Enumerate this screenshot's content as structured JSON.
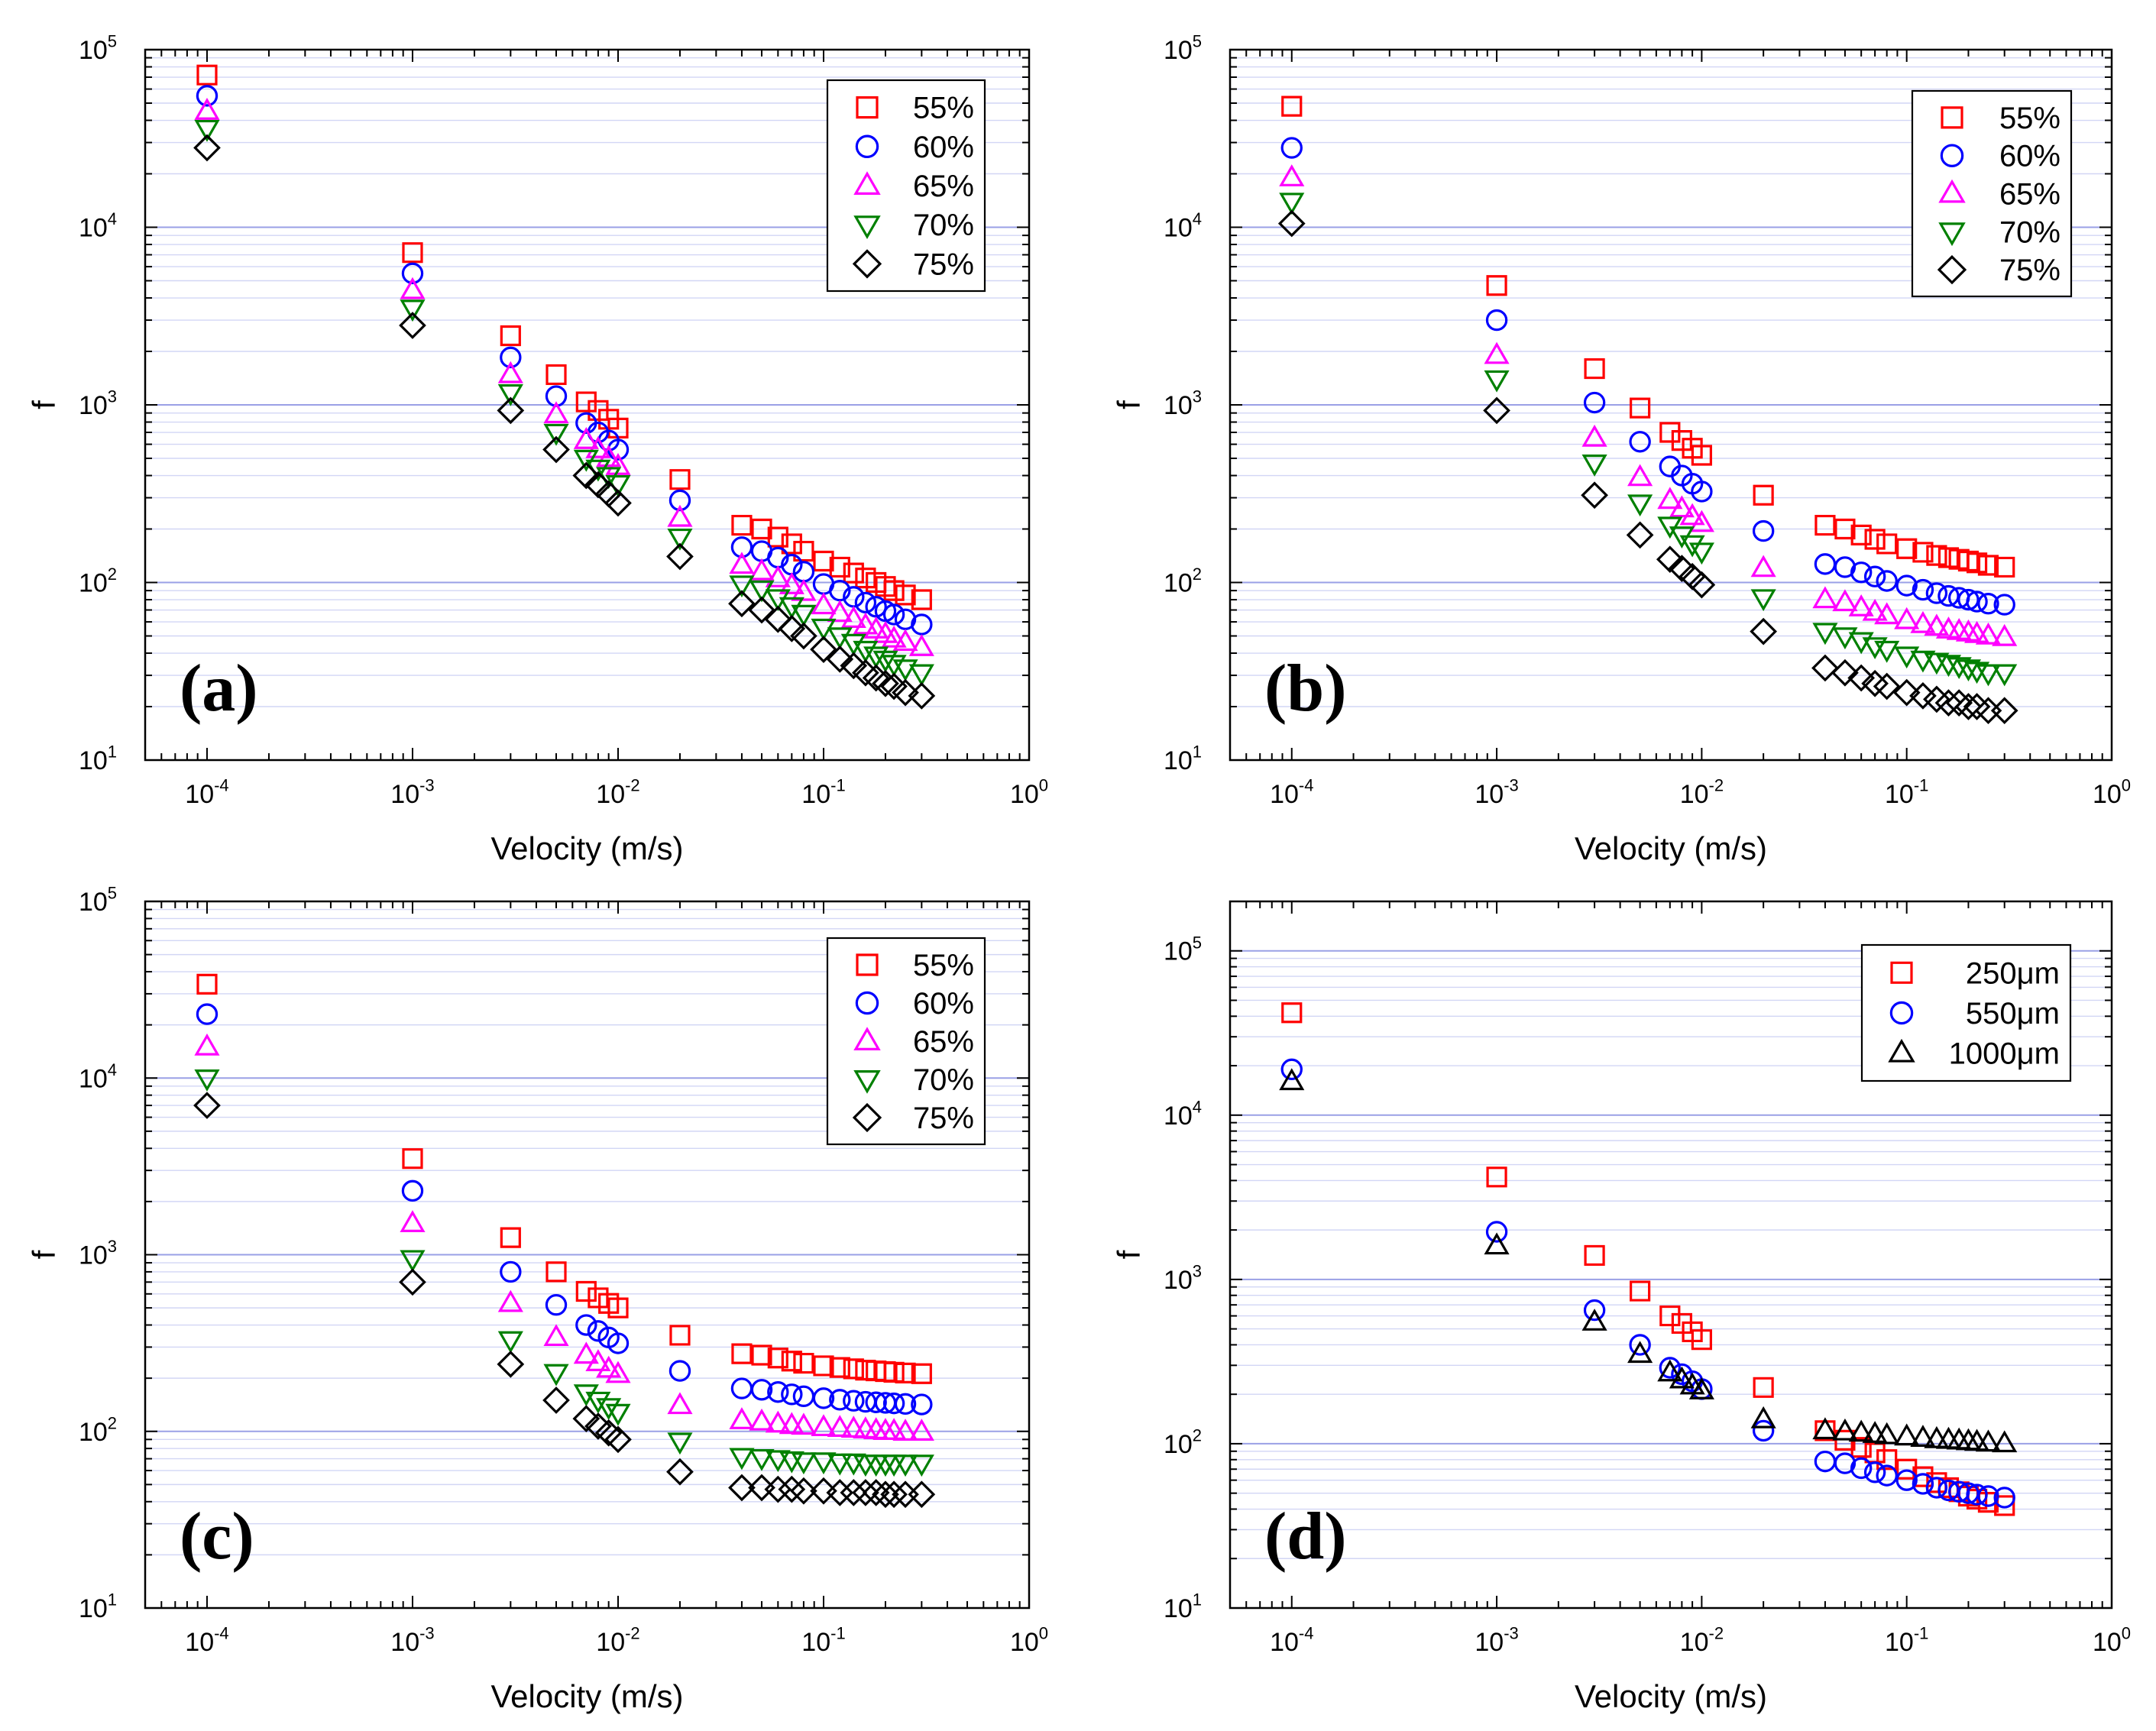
{
  "chart_data": [
    {
      "type": "scatter",
      "panel_label": "(a)",
      "xlabel": "Velocity (m/s)",
      "ylabel": "f",
      "x_scale": "log",
      "y_scale": "log",
      "xlim": [
        5e-05,
        1
      ],
      "ylim": [
        10,
        100000
      ],
      "xticks": [
        {
          "v": 0.0001,
          "m": "10",
          "e": "-4"
        },
        {
          "v": 0.001,
          "m": "10",
          "e": "-3"
        },
        {
          "v": 0.01,
          "m": "10",
          "e": "-2"
        },
        {
          "v": 0.1,
          "m": "10",
          "e": "-1"
        },
        {
          "v": 1,
          "m": "10",
          "e": "0"
        }
      ],
      "yticks": [
        {
          "v": 10,
          "m": "10",
          "e": "1"
        },
        {
          "v": 100,
          "m": "10",
          "e": "2"
        },
        {
          "v": 1000,
          "m": "10",
          "e": "3"
        },
        {
          "v": 10000,
          "m": "10",
          "e": "4"
        },
        {
          "v": 100000,
          "m": "10",
          "e": "5"
        }
      ],
      "legend_position": "top-right",
      "grid": "horizontal",
      "x": [
        0.0001,
        0.001,
        0.003,
        0.005,
        0.007,
        0.008,
        0.009,
        0.01,
        0.02,
        0.04,
        0.05,
        0.06,
        0.07,
        0.08,
        0.1,
        0.12,
        0.14,
        0.16,
        0.18,
        0.2,
        0.22,
        0.25,
        0.3
      ],
      "series": [
        {
          "name": "55%",
          "marker": "square",
          "color": "#ff0000",
          "values": [
            72000,
            7200,
            2450,
            1480,
            1040,
            930,
            830,
            740,
            380,
            210,
            200,
            180,
            165,
            150,
            132,
            122,
            113,
            106,
            100,
            95,
            90,
            85,
            80
          ]
        },
        {
          "name": "60%",
          "marker": "circle",
          "color": "#0000ff",
          "values": [
            55000,
            5500,
            1850,
            1120,
            790,
            700,
            630,
            560,
            290,
            158,
            150,
            138,
            126,
            115,
            98,
            90,
            83,
            77,
            73,
            69,
            66,
            62,
            58
          ]
        },
        {
          "name": "65%",
          "marker": "triangle-up",
          "color": "#ff00ff",
          "values": [
            45000,
            4400,
            1480,
            880,
            630,
            560,
            500,
            450,
            230,
            125,
            115,
            105,
            96,
            88,
            74,
            67,
            62,
            57,
            54,
            51,
            48,
            46,
            43
          ]
        },
        {
          "name": "70%",
          "marker": "triangle-down",
          "color": "#008000",
          "values": [
            36000,
            3500,
            1170,
            700,
            500,
            440,
            400,
            360,
            180,
            98,
            92,
            82,
            74,
            67,
            56,
            50,
            46,
            42,
            39,
            37,
            35,
            33,
            31
          ]
        },
        {
          "name": "75%",
          "marker": "diamond",
          "color": "#000000",
          "values": [
            28000,
            2800,
            930,
            560,
            400,
            355,
            315,
            280,
            140,
            76,
            70,
            62,
            55,
            50,
            42,
            37,
            34,
            31,
            29,
            27,
            26,
            24,
            23
          ]
        }
      ]
    },
    {
      "type": "scatter",
      "panel_label": "(b)",
      "xlabel": "Velocity (m/s)",
      "ylabel": "f",
      "x_scale": "log",
      "y_scale": "log",
      "xlim": [
        5e-05,
        1
      ],
      "ylim": [
        10,
        100000
      ],
      "xticks": [
        {
          "v": 0.0001,
          "m": "10",
          "e": "-4"
        },
        {
          "v": 0.001,
          "m": "10",
          "e": "-3"
        },
        {
          "v": 0.01,
          "m": "10",
          "e": "-2"
        },
        {
          "v": 0.1,
          "m": "10",
          "e": "-1"
        },
        {
          "v": 1,
          "m": "10",
          "e": "0"
        }
      ],
      "yticks": [
        {
          "v": 10,
          "m": "10",
          "e": "1"
        },
        {
          "v": 100,
          "m": "10",
          "e": "2"
        },
        {
          "v": 1000,
          "m": "10",
          "e": "3"
        },
        {
          "v": 10000,
          "m": "10",
          "e": "4"
        },
        {
          "v": 100000,
          "m": "10",
          "e": "5"
        }
      ],
      "legend_position": "top-right",
      "grid": "horizontal",
      "x": [
        0.0001,
        0.001,
        0.003,
        0.005,
        0.007,
        0.008,
        0.009,
        0.01,
        0.02,
        0.04,
        0.05,
        0.06,
        0.07,
        0.08,
        0.1,
        0.12,
        0.14,
        0.16,
        0.18,
        0.2,
        0.22,
        0.25,
        0.3
      ],
      "series": [
        {
          "name": "55%",
          "marker": "square",
          "color": "#ff0000",
          "values": [
            48000,
            4700,
            1600,
            960,
            700,
            630,
            570,
            520,
            310,
            210,
            200,
            185,
            175,
            165,
            155,
            148,
            142,
            138,
            135,
            132,
            129,
            125,
            122
          ]
        },
        {
          "name": "60%",
          "marker": "circle",
          "color": "#0000ff",
          "values": [
            28000,
            3000,
            1030,
            620,
            450,
            400,
            360,
            325,
            195,
            127,
            122,
            114,
            108,
            102,
            96,
            91,
            87,
            84,
            82,
            80,
            78,
            76,
            75
          ]
        },
        {
          "name": "65%",
          "marker": "triangle-up",
          "color": "#ff00ff",
          "values": [
            19000,
            1900,
            650,
            390,
            290,
            260,
            235,
            215,
            120,
            80,
            77,
            72,
            68,
            65,
            61,
            58,
            56,
            54,
            53,
            52,
            51,
            50,
            49
          ]
        },
        {
          "name": "70%",
          "marker": "triangle-down",
          "color": "#008000",
          "values": [
            14000,
            1400,
            470,
            280,
            210,
            185,
            165,
            150,
            82,
            53,
            50,
            47,
            44,
            42,
            39,
            37,
            36,
            35,
            34,
            33,
            32,
            31,
            31
          ]
        },
        {
          "name": "75%",
          "marker": "diamond",
          "color": "#000000",
          "values": [
            10500,
            930,
            310,
            185,
            135,
            120,
            108,
            97,
            53,
            33,
            31,
            29,
            27,
            26,
            24,
            23,
            22,
            21,
            21,
            20,
            20,
            19,
            19
          ]
        }
      ]
    },
    {
      "type": "scatter",
      "panel_label": "(c)",
      "xlabel": "Velocity (m/s)",
      "ylabel": "f",
      "x_scale": "log",
      "y_scale": "log",
      "xlim": [
        5e-05,
        1
      ],
      "ylim": [
        10,
        100000
      ],
      "xticks": [
        {
          "v": 0.0001,
          "m": "10",
          "e": "-4"
        },
        {
          "v": 0.001,
          "m": "10",
          "e": "-3"
        },
        {
          "v": 0.01,
          "m": "10",
          "e": "-2"
        },
        {
          "v": 0.1,
          "m": "10",
          "e": "-1"
        },
        {
          "v": 1,
          "m": "10",
          "e": "0"
        }
      ],
      "yticks": [
        {
          "v": 10,
          "m": "10",
          "e": "1"
        },
        {
          "v": 100,
          "m": "10",
          "e": "2"
        },
        {
          "v": 1000,
          "m": "10",
          "e": "3"
        },
        {
          "v": 10000,
          "m": "10",
          "e": "4"
        },
        {
          "v": 100000,
          "m": "10",
          "e": "5"
        }
      ],
      "legend_position": "top-right",
      "grid": "horizontal",
      "x": [
        0.0001,
        0.001,
        0.003,
        0.005,
        0.007,
        0.008,
        0.009,
        0.01,
        0.02,
        0.04,
        0.05,
        0.06,
        0.07,
        0.08,
        0.1,
        0.12,
        0.14,
        0.16,
        0.18,
        0.2,
        0.22,
        0.25,
        0.3
      ],
      "series": [
        {
          "name": "55%",
          "marker": "square",
          "color": "#ff0000",
          "values": [
            34000,
            3500,
            1250,
            800,
            620,
            570,
            530,
            500,
            350,
            275,
            270,
            260,
            250,
            243,
            235,
            230,
            226,
            222,
            220,
            218,
            216,
            214,
            212
          ]
        },
        {
          "name": "60%",
          "marker": "circle",
          "color": "#0000ff",
          "values": [
            23000,
            2300,
            800,
            520,
            400,
            370,
            340,
            315,
            220,
            175,
            172,
            167,
            162,
            158,
            154,
            151,
            149,
            147,
            146,
            145,
            144,
            143,
            142
          ]
        },
        {
          "name": "65%",
          "marker": "triangle-up",
          "color": "#ff00ff",
          "values": [
            15000,
            1500,
            530,
            340,
            270,
            245,
            225,
            210,
            140,
            115,
            113,
            110,
            108,
            107,
            105,
            104,
            103,
            102,
            101,
            100,
            100,
            99,
            99
          ]
        },
        {
          "name": "70%",
          "marker": "triangle-down",
          "color": "#008000",
          "values": [
            10000,
            950,
            330,
            215,
            165,
            150,
            138,
            128,
            88,
            72,
            71,
            70,
            69,
            68,
            68,
            67,
            67,
            66,
            66,
            66,
            66,
            66,
            66
          ]
        },
        {
          "name": "75%",
          "marker": "diamond",
          "color": "#000000",
          "values": [
            7000,
            700,
            240,
            150,
            118,
            107,
            98,
            90,
            59,
            48,
            48,
            47,
            47,
            46,
            46,
            45,
            45,
            45,
            45,
            44,
            44,
            44,
            44
          ]
        }
      ]
    },
    {
      "type": "scatter",
      "panel_label": "(d)",
      "xlabel": "Velocity (m/s)",
      "ylabel": "f",
      "x_scale": "log",
      "y_scale": "log",
      "xlim": [
        5e-05,
        1
      ],
      "ylim": [
        10,
        200000
      ],
      "xticks": [
        {
          "v": 0.0001,
          "m": "10",
          "e": "-4"
        },
        {
          "v": 0.001,
          "m": "10",
          "e": "-3"
        },
        {
          "v": 0.01,
          "m": "10",
          "e": "-2"
        },
        {
          "v": 0.1,
          "m": "10",
          "e": "-1"
        },
        {
          "v": 1,
          "m": "10",
          "e": "0"
        }
      ],
      "yticks": [
        {
          "v": 10,
          "m": "10",
          "e": "1"
        },
        {
          "v": 100,
          "m": "10",
          "e": "2"
        },
        {
          "v": 1000,
          "m": "10",
          "e": "3"
        },
        {
          "v": 10000,
          "m": "10",
          "e": "4"
        },
        {
          "v": 100000,
          "m": "10",
          "e": "5"
        }
      ],
      "legend_position": "top-right",
      "grid": "horizontal",
      "x": [
        0.0001,
        0.001,
        0.003,
        0.005,
        0.007,
        0.008,
        0.009,
        0.01,
        0.02,
        0.04,
        0.05,
        0.06,
        0.07,
        0.08,
        0.1,
        0.12,
        0.14,
        0.16,
        0.18,
        0.2,
        0.22,
        0.25,
        0.3
      ],
      "series": [
        {
          "name": "250μm",
          "marker": "square",
          "color": "#ff0000",
          "values": [
            42000,
            4200,
            1400,
            850,
            600,
            540,
            480,
            430,
            220,
            120,
            105,
            95,
            88,
            80,
            70,
            63,
            58,
            54,
            51,
            48,
            46,
            44,
            42
          ]
        },
        {
          "name": "550μm",
          "marker": "circle",
          "color": "#0000ff",
          "values": [
            19000,
            1950,
            650,
            400,
            290,
            265,
            240,
            215,
            120,
            78,
            76,
            71,
            67,
            64,
            60,
            57,
            54,
            52,
            51,
            50,
            49,
            48,
            47
          ]
        },
        {
          "name": "1000μm",
          "marker": "triangle-up",
          "color": "#000000",
          "values": [
            16000,
            1600,
            550,
            350,
            270,
            245,
            225,
            210,
            140,
            120,
            118,
            116,
            114,
            112,
            110,
            108,
            106,
            105,
            104,
            103,
            102,
            101,
            100
          ]
        }
      ]
    }
  ]
}
